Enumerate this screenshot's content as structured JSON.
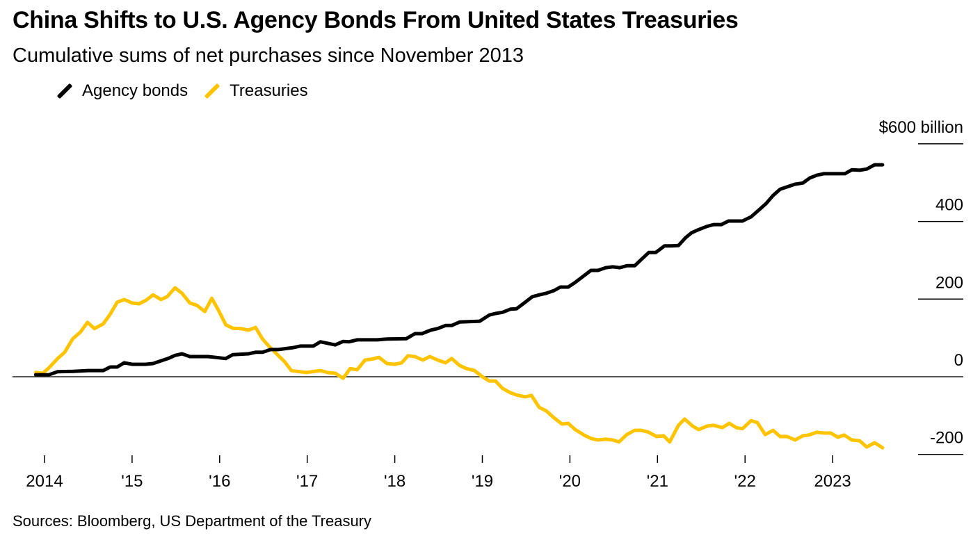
{
  "title": "China Shifts to U.S. Agency Bonds From United States Treasuries",
  "subtitle": "Cumulative sums of net purchases since November 2013",
  "source": "Sources: Bloomberg, US Department of the Treasury",
  "chart_data": {
    "type": "line",
    "title": "China Shifts to U.S. Agency Bonds From United States Treasuries",
    "subtitle": "Cumulative sums of net purchases since November 2013",
    "xlabel": "",
    "ylabel": "",
    "xlim": [
      2013.9,
      2023.6
    ],
    "ylim": [
      -200,
      600
    ],
    "y_ticks": [
      {
        "value": 600,
        "label": "$600 billion"
      },
      {
        "value": 400,
        "label": "400"
      },
      {
        "value": 200,
        "label": "200"
      },
      {
        "value": 0,
        "label": "0"
      },
      {
        "value": -200,
        "label": "-200"
      }
    ],
    "x_ticks": [
      {
        "value": 2014,
        "label": "2014"
      },
      {
        "value": 2015,
        "label": "'15"
      },
      {
        "value": 2016,
        "label": "'16"
      },
      {
        "value": 2017,
        "label": "'17"
      },
      {
        "value": 2018,
        "label": "'18"
      },
      {
        "value": 2019,
        "label": "'19"
      },
      {
        "value": 2020,
        "label": "'20"
      },
      {
        "value": 2021,
        "label": "'21"
      },
      {
        "value": 2022,
        "label": "'22"
      },
      {
        "value": 2023,
        "label": "2023"
      }
    ],
    "legend_position": "top-left",
    "grid": false,
    "series": [
      {
        "name": "Agency bonds",
        "color": "#000000",
        "points": [
          [
            2013.9,
            5
          ],
          [
            2014.05,
            5
          ],
          [
            2014.15,
            13
          ],
          [
            2014.33,
            14
          ],
          [
            2014.5,
            16
          ],
          [
            2014.67,
            16
          ],
          [
            2014.75,
            25
          ],
          [
            2014.83,
            25
          ],
          [
            2014.91,
            36
          ],
          [
            2015.0,
            32
          ],
          [
            2015.15,
            32
          ],
          [
            2015.24,
            34
          ],
          [
            2015.33,
            41
          ],
          [
            2015.41,
            47
          ],
          [
            2015.49,
            55
          ],
          [
            2015.57,
            59
          ],
          [
            2015.66,
            52
          ],
          [
            2015.87,
            52
          ],
          [
            2016.07,
            47
          ],
          [
            2016.15,
            57
          ],
          [
            2016.33,
            59
          ],
          [
            2016.41,
            63
          ],
          [
            2016.49,
            63
          ],
          [
            2016.58,
            70
          ],
          [
            2016.67,
            70
          ],
          [
            2016.84,
            75
          ],
          [
            2016.92,
            79
          ],
          [
            2017.07,
            79
          ],
          [
            2017.15,
            90
          ],
          [
            2017.32,
            82
          ],
          [
            2017.41,
            91
          ],
          [
            2017.48,
            90
          ],
          [
            2017.57,
            95
          ],
          [
            2017.8,
            95
          ],
          [
            2017.91,
            97
          ],
          [
            2018.13,
            98
          ],
          [
            2018.23,
            111
          ],
          [
            2018.31,
            111
          ],
          [
            2018.41,
            120
          ],
          [
            2018.49,
            124
          ],
          [
            2018.58,
            132
          ],
          [
            2018.65,
            132
          ],
          [
            2018.74,
            141
          ],
          [
            2018.97,
            143
          ],
          [
            2019.08,
            159
          ],
          [
            2019.15,
            163
          ],
          [
            2019.23,
            166
          ],
          [
            2019.32,
            174
          ],
          [
            2019.39,
            175
          ],
          [
            2019.49,
            192
          ],
          [
            2019.57,
            206
          ],
          [
            2019.65,
            211
          ],
          [
            2019.73,
            215
          ],
          [
            2019.82,
            222
          ],
          [
            2019.89,
            231
          ],
          [
            2019.98,
            231
          ],
          [
            2020.06,
            243
          ],
          [
            2020.16,
            260
          ],
          [
            2020.24,
            274
          ],
          [
            2020.32,
            274
          ],
          [
            2020.41,
            281
          ],
          [
            2020.49,
            283
          ],
          [
            2020.57,
            281
          ],
          [
            2020.65,
            286
          ],
          [
            2020.74,
            286
          ],
          [
            2020.81,
            301
          ],
          [
            2020.9,
            320
          ],
          [
            2020.98,
            320
          ],
          [
            2021.08,
            337
          ],
          [
            2021.16,
            337
          ],
          [
            2021.24,
            338
          ],
          [
            2021.32,
            358
          ],
          [
            2021.39,
            371
          ],
          [
            2021.47,
            379
          ],
          [
            2021.56,
            387
          ],
          [
            2021.64,
            392
          ],
          [
            2021.73,
            392
          ],
          [
            2021.81,
            401
          ],
          [
            2021.9,
            401
          ],
          [
            2021.97,
            401
          ],
          [
            2022.07,
            412
          ],
          [
            2022.15,
            428
          ],
          [
            2022.24,
            446
          ],
          [
            2022.32,
            467
          ],
          [
            2022.4,
            483
          ],
          [
            2022.48,
            489
          ],
          [
            2022.57,
            496
          ],
          [
            2022.66,
            499
          ],
          [
            2022.74,
            512
          ],
          [
            2022.82,
            519
          ],
          [
            2022.9,
            523
          ],
          [
            2022.98,
            523
          ],
          [
            2023.06,
            523
          ],
          [
            2023.14,
            523
          ],
          [
            2023.22,
            533
          ],
          [
            2023.31,
            532
          ],
          [
            2023.39,
            535
          ],
          [
            2023.48,
            546
          ],
          [
            2023.57,
            546
          ]
        ]
      },
      {
        "name": "Treasuries",
        "color": "#FFC400",
        "points": [
          [
            2013.9,
            11
          ],
          [
            2013.98,
            9
          ],
          [
            2014.05,
            23
          ],
          [
            2014.15,
            47
          ],
          [
            2014.23,
            63
          ],
          [
            2014.32,
            97
          ],
          [
            2014.41,
            115
          ],
          [
            2014.49,
            140
          ],
          [
            2014.57,
            124
          ],
          [
            2014.67,
            136
          ],
          [
            2014.75,
            161
          ],
          [
            2014.83,
            192
          ],
          [
            2014.91,
            199
          ],
          [
            2015.0,
            190
          ],
          [
            2015.08,
            188
          ],
          [
            2015.16,
            197
          ],
          [
            2015.24,
            211
          ],
          [
            2015.33,
            199
          ],
          [
            2015.4,
            206
          ],
          [
            2015.49,
            229
          ],
          [
            2015.57,
            215
          ],
          [
            2015.66,
            190
          ],
          [
            2015.74,
            184
          ],
          [
            2015.83,
            168
          ],
          [
            2015.91,
            202
          ],
          [
            2015.99,
            170
          ],
          [
            2016.07,
            134
          ],
          [
            2016.15,
            125
          ],
          [
            2016.24,
            124
          ],
          [
            2016.33,
            120
          ],
          [
            2016.41,
            127
          ],
          [
            2016.49,
            97
          ],
          [
            2016.57,
            77
          ],
          [
            2016.65,
            59
          ],
          [
            2016.74,
            39
          ],
          [
            2016.82,
            16
          ],
          [
            2016.91,
            13
          ],
          [
            2016.99,
            11
          ],
          [
            2017.15,
            16
          ],
          [
            2017.23,
            11
          ],
          [
            2017.32,
            9
          ],
          [
            2017.41,
            -4
          ],
          [
            2017.49,
            21
          ],
          [
            2017.57,
            18
          ],
          [
            2017.66,
            43
          ],
          [
            2017.73,
            45
          ],
          [
            2017.82,
            50
          ],
          [
            2017.91,
            34
          ],
          [
            2018.0,
            32
          ],
          [
            2018.08,
            36
          ],
          [
            2018.15,
            54
          ],
          [
            2018.23,
            52
          ],
          [
            2018.32,
            43
          ],
          [
            2018.4,
            52
          ],
          [
            2018.49,
            43
          ],
          [
            2018.58,
            36
          ],
          [
            2018.65,
            47
          ],
          [
            2018.74,
            29
          ],
          [
            2018.82,
            21
          ],
          [
            2018.91,
            16
          ],
          [
            2019.0,
            0
          ],
          [
            2019.08,
            -11
          ],
          [
            2019.15,
            -11
          ],
          [
            2019.23,
            -30
          ],
          [
            2019.32,
            -41
          ],
          [
            2019.39,
            -47
          ],
          [
            2019.49,
            -52
          ],
          [
            2019.56,
            -48
          ],
          [
            2019.65,
            -79
          ],
          [
            2019.73,
            -88
          ],
          [
            2019.82,
            -106
          ],
          [
            2019.91,
            -122
          ],
          [
            2019.98,
            -120
          ],
          [
            2020.06,
            -136
          ],
          [
            2020.16,
            -150
          ],
          [
            2020.24,
            -159
          ],
          [
            2020.32,
            -163
          ],
          [
            2020.41,
            -161
          ],
          [
            2020.49,
            -163
          ],
          [
            2020.56,
            -168
          ],
          [
            2020.65,
            -149
          ],
          [
            2020.74,
            -138
          ],
          [
            2020.82,
            -138
          ],
          [
            2020.9,
            -143
          ],
          [
            2020.99,
            -154
          ],
          [
            2021.07,
            -152
          ],
          [
            2021.14,
            -168
          ],
          [
            2021.24,
            -125
          ],
          [
            2021.31,
            -109
          ],
          [
            2021.4,
            -127
          ],
          [
            2021.47,
            -136
          ],
          [
            2021.57,
            -127
          ],
          [
            2021.64,
            -125
          ],
          [
            2021.74,
            -131
          ],
          [
            2021.82,
            -120
          ],
          [
            2021.9,
            -131
          ],
          [
            2021.97,
            -134
          ],
          [
            2022.07,
            -113
          ],
          [
            2022.14,
            -118
          ],
          [
            2022.23,
            -149
          ],
          [
            2022.32,
            -138
          ],
          [
            2022.4,
            -154
          ],
          [
            2022.48,
            -154
          ],
          [
            2022.57,
            -163
          ],
          [
            2022.66,
            -152
          ],
          [
            2022.73,
            -150
          ],
          [
            2022.82,
            -143
          ],
          [
            2022.9,
            -145
          ],
          [
            2022.98,
            -145
          ],
          [
            2023.06,
            -156
          ],
          [
            2023.13,
            -150
          ],
          [
            2023.22,
            -163
          ],
          [
            2023.31,
            -165
          ],
          [
            2023.39,
            -181
          ],
          [
            2023.48,
            -170
          ],
          [
            2023.57,
            -183
          ]
        ]
      }
    ]
  }
}
